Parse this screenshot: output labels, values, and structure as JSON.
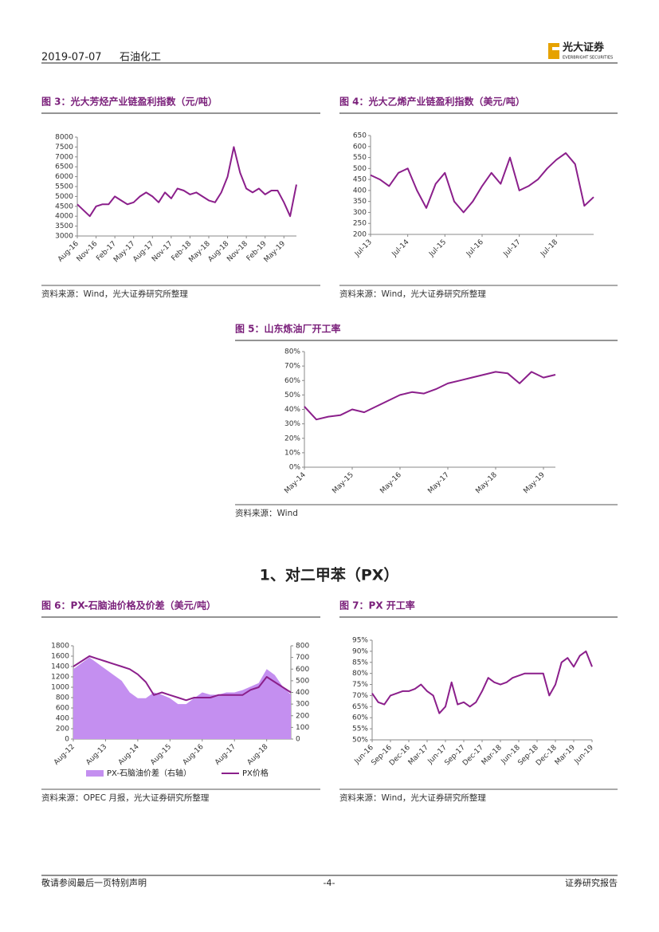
{
  "header": {
    "date": "2019-07-07",
    "industry": "石油化工",
    "logo": "光大证券",
    "logo_en": "EVERBRIGHT SECURITIES"
  },
  "section_title": "1、对二甲苯（PX）",
  "chart_data": [
    {
      "type": "line",
      "title": "图 3：光大芳烃产业链盈利指数（元/吨）",
      "source": "资料来源：Wind，光大证券研究所整理",
      "categories": [
        "Aug-16",
        null,
        null,
        "Nov-16",
        null,
        null,
        "Feb-17",
        null,
        null,
        "May-17",
        null,
        null,
        "Aug-17",
        null,
        null,
        "Nov-17",
        null,
        null,
        "Feb-18",
        null,
        null,
        "May-18",
        null,
        null,
        "Aug-18",
        null,
        null,
        "Nov-18",
        null,
        null,
        "Feb-19",
        null,
        null,
        "May-19",
        null,
        null
      ],
      "series": [
        {
          "color": "#8b1f8b",
          "values": [
            4600,
            4300,
            4000,
            4500,
            4600,
            4600,
            5000,
            4800,
            4600,
            4700,
            5000,
            5200,
            5000,
            4700,
            5200,
            4900,
            5400,
            5300,
            5100,
            5200,
            5000,
            4800,
            4700,
            5200,
            6000,
            7500,
            6200,
            5400,
            5200,
            5400,
            5100,
            5300,
            5300,
            4700,
            4000,
            5600
          ]
        }
      ],
      "ylim": [
        3000,
        8000
      ],
      "yticks": [
        3000,
        3500,
        4000,
        4500,
        5000,
        5500,
        6000,
        6500,
        7000,
        7500,
        8000
      ]
    },
    {
      "type": "line",
      "title": "图 4：光大乙烯产业链盈利指数（美元/吨）",
      "source": "资料来源：Wind，光大证券研究所整理",
      "categories": [
        "Jul-13",
        null,
        null,
        null,
        "Jul-14",
        null,
        null,
        null,
        "Jul-15",
        null,
        null,
        null,
        "Jul-16",
        null,
        null,
        null,
        "Jul-17",
        null,
        null,
        null,
        "Jul-18",
        null,
        null,
        null,
        null
      ],
      "series": [
        {
          "color": "#8b1f8b",
          "values": [
            470,
            450,
            420,
            480,
            500,
            400,
            320,
            430,
            480,
            350,
            300,
            350,
            420,
            480,
            430,
            550,
            400,
            420,
            450,
            500,
            540,
            570,
            520,
            330,
            370
          ]
        }
      ],
      "ylim": [
        200,
        650
      ],
      "yticks": [
        200,
        250,
        300,
        350,
        400,
        450,
        500,
        550,
        600,
        650
      ]
    },
    {
      "type": "line",
      "title": "图 5：山东炼油厂开工率",
      "source": "资料来源：Wind",
      "categories": [
        "May-14",
        null,
        null,
        null,
        "May-15",
        null,
        null,
        null,
        "May-16",
        null,
        null,
        null,
        "May-17",
        null,
        null,
        null,
        "May-18",
        null,
        null,
        null,
        "May-19",
        null
      ],
      "series": [
        {
          "color": "#8b1f8b",
          "values": [
            42,
            33,
            35,
            36,
            40,
            38,
            42,
            46,
            50,
            52,
            51,
            54,
            58,
            60,
            62,
            64,
            66,
            65,
            58,
            66,
            62,
            64
          ]
        }
      ],
      "ylim": [
        0,
        80
      ],
      "yticks": [
        {
          "value": 0,
          "label": "0%"
        },
        {
          "value": 10,
          "label": "10%"
        },
        {
          "value": 20,
          "label": "20%"
        },
        {
          "value": 30,
          "label": "30%"
        },
        {
          "value": 40,
          "label": "40%"
        },
        {
          "value": 50,
          "label": "50%"
        },
        {
          "value": 60,
          "label": "60%"
        },
        {
          "value": 70,
          "label": "70%"
        },
        {
          "value": 80,
          "label": "80%"
        }
      ]
    },
    {
      "type": "line",
      "title": "图 6：PX-石脑油价格及价差（美元/吨）",
      "source": "资料来源：OPEC 月报，光大证券研究所整理",
      "legend": "bottom",
      "categories": [
        "Aug-12",
        null,
        null,
        null,
        "Aug-13",
        null,
        null,
        null,
        "Aug-14",
        null,
        null,
        null,
        "Aug-15",
        null,
        null,
        null,
        "Aug-16",
        null,
        null,
        null,
        "Aug-17",
        null,
        null,
        null,
        "Aug-18",
        null,
        null,
        null
      ],
      "series": [
        {
          "name": "PX-石脑油价差（右轴）",
          "type": "area",
          "axis": "y2",
          "color": "#c48ff0",
          "values": [
            600,
            650,
            700,
            650,
            600,
            550,
            500,
            400,
            350,
            350,
            400,
            380,
            350,
            300,
            300,
            350,
            400,
            380,
            380,
            400,
            400,
            420,
            450,
            480,
            600,
            550,
            450,
            380
          ]
        },
        {
          "name": "PX价格",
          "color": "#8b1f8b",
          "values": [
            1400,
            1500,
            1600,
            1550,
            1500,
            1450,
            1400,
            1350,
            1250,
            1100,
            850,
            900,
            850,
            800,
            750,
            800,
            800,
            800,
            850,
            850,
            850,
            850,
            950,
            1000,
            1200,
            1100,
            1000,
            900
          ]
        }
      ],
      "ylim": [
        0,
        1800
      ],
      "yticks": [
        0,
        200,
        400,
        600,
        800,
        1000,
        1200,
        1400,
        1600,
        1800
      ],
      "y2lim": [
        0,
        800
      ],
      "y2ticks": [
        0,
        100,
        200,
        300,
        400,
        500,
        600,
        700,
        800
      ]
    },
    {
      "type": "line",
      "title": "图 7：PX 开工率",
      "source": "资料来源：Wind，光大证券研究所整理",
      "categories": [
        "Jun-16",
        null,
        null,
        "Sep-16",
        null,
        null,
        "Dec-16",
        null,
        null,
        "Mar-17",
        null,
        null,
        "Jun-17",
        null,
        null,
        "Sep-17",
        null,
        null,
        "Dec-17",
        null,
        null,
        "Mar-18",
        null,
        null,
        "Jun-18",
        null,
        null,
        "Sep-18",
        null,
        null,
        "Dec-18",
        null,
        null,
        "Mar-19",
        null,
        null,
        "Jun-19"
      ],
      "series": [
        {
          "color": "#8b1f8b",
          "values": [
            71,
            67,
            66,
            70,
            71,
            72,
            72,
            73,
            75,
            72,
            70,
            62,
            65,
            76,
            66,
            67,
            65,
            67,
            72,
            78,
            76,
            75,
            76,
            78,
            79,
            80,
            80,
            80,
            80,
            70,
            75,
            85,
            87,
            83,
            88,
            90,
            83
          ]
        }
      ],
      "ylim": [
        50,
        95
      ],
      "yticks": [
        {
          "value": 50,
          "label": "50%"
        },
        {
          "value": 55,
          "label": "55%"
        },
        {
          "value": 60,
          "label": "60%"
        },
        {
          "value": 65,
          "label": "65%"
        },
        {
          "value": 70,
          "label": "70%"
        },
        {
          "value": 75,
          "label": "75%"
        },
        {
          "value": 80,
          "label": "80%"
        },
        {
          "value": 85,
          "label": "85%"
        },
        {
          "value": 90,
          "label": "90%"
        },
        {
          "value": 95,
          "label": "95%"
        }
      ]
    }
  ],
  "footer": {
    "disclaimer": "敬请参阅最后一页特别声明",
    "page": "-4-",
    "report_type": "证券研究报告"
  }
}
